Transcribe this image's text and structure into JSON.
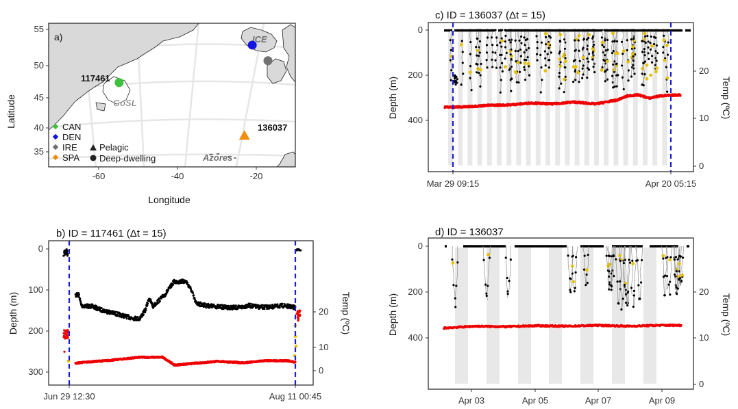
{
  "panel_a": {
    "label": "a)",
    "xlabel": "Longitude",
    "ylabel": "Latitude",
    "xticks": [
      "-60",
      "-40",
      "-20"
    ],
    "yticks": [
      "35",
      "40",
      "45",
      "50",
      "55"
    ],
    "places": {
      "gosl": "GoSL",
      "ice": "ICE",
      "azores": "Azores"
    },
    "tag_labels": {
      "t117461": "117461",
      "t136037": "136037"
    },
    "legend": {
      "countries": [
        {
          "label": "CAN",
          "color": "#3ec23e"
        },
        {
          "label": "DEN",
          "color": "#1515e0"
        },
        {
          "label": "IRE",
          "color": "#707070"
        },
        {
          "label": "SPA",
          "color": "#f28c0f"
        }
      ],
      "behaviours": [
        "Pelagic",
        "Deep-dwelling"
      ]
    },
    "colors": {
      "land": "#d9d9d9",
      "sea": "#ffffff",
      "graticule": "#e6e6e6"
    }
  },
  "panel_b": {
    "title": "b)  ID = 117461 (Δt = 15)",
    "ylabel_left": "Depth (m)",
    "ylabel_right": "Temp (ºC)",
    "left_ticks": [
      "0",
      "100",
      "200",
      "300"
    ],
    "right_ticks": [
      "0",
      "10",
      "20"
    ],
    "xticks": [
      "Jun 29 12:30",
      "Aug 11 00:45"
    ]
  },
  "panel_c": {
    "title": "c)  ID = 136037 (Δt = 15)",
    "ylabel_left": "Depth (m)",
    "ylabel_right": "Temp (ºC)",
    "left_ticks": [
      "0",
      "200",
      "400"
    ],
    "right_ticks": [
      "0",
      "10",
      "20"
    ],
    "xticks": [
      "Mar 29 09:15",
      "Apr 20 05:15"
    ]
  },
  "panel_d": {
    "title": "d)  ID = 136037",
    "ylabel_left": "Depth (m)",
    "ylabel_right": "Temp (ºC)",
    "left_ticks": [
      "0",
      "200",
      "400"
    ],
    "right_ticks": [
      "0",
      "10",
      "20"
    ],
    "xticks": [
      "Apr 03",
      "Apr 05",
      "Apr 07",
      "Apr 09"
    ]
  },
  "chart_data": [
    {
      "type": "scatter",
      "panel": "a",
      "xlabel": "Longitude",
      "ylabel": "Latitude",
      "xlim": [
        -72,
        -9
      ],
      "ylim": [
        33,
        56
      ],
      "points": [
        {
          "label": "117461",
          "lon": -54,
          "lat": 46.5,
          "country": "CAN",
          "shape": "circle"
        },
        {
          "label": "",
          "lon": -20,
          "lat": 52.5,
          "country": "DEN",
          "shape": "circle"
        },
        {
          "label": "",
          "lon": -16,
          "lat": 50,
          "country": "IRE",
          "shape": "circle"
        },
        {
          "label": "136037",
          "lon": -22,
          "lat": 38,
          "country": "SPA",
          "shape": "triangle"
        }
      ]
    },
    {
      "type": "scatter",
      "panel": "b",
      "ylabel": "Depth (m)",
      "y2label": "Temp (ºC)",
      "x_start": "Jun 29 12:30",
      "x_end": "Aug 11 00:45",
      "ylim": [
        0,
        355
      ],
      "y2lim": [
        -3,
        27
      ],
      "series": [
        {
          "name": "",
          "color": "#000000",
          "role": "depth"
        },
        {
          "name": "",
          "color": "#ee0000",
          "role": "temperature"
        },
        {
          "name": "",
          "color": "#e8c000",
          "role": "yellow points"
        }
      ],
      "depth_profile": [
        [
          0,
          5
        ],
        [
          0.3,
          10
        ],
        [
          1.6,
          112
        ],
        [
          2.5,
          112
        ],
        [
          3.1,
          138
        ],
        [
          6,
          140
        ],
        [
          8,
          148
        ],
        [
          12,
          158
        ],
        [
          16,
          168
        ],
        [
          18,
          170
        ],
        [
          19.5,
          150
        ],
        [
          20.5,
          120
        ],
        [
          21.5,
          140
        ],
        [
          22.5,
          130
        ],
        [
          24.5,
          112
        ],
        [
          26,
          92
        ],
        [
          26.8,
          80
        ],
        [
          30,
          79
        ],
        [
          31.3,
          100
        ],
        [
          32.5,
          132
        ],
        [
          35,
          138
        ],
        [
          40,
          142
        ],
        [
          43.5,
          143
        ],
        [
          46,
          138
        ],
        [
          49,
          142
        ],
        [
          52,
          141
        ],
        [
          55,
          138
        ],
        [
          58,
          143
        ]
      ],
      "temp_profile": [
        [
          0,
          13
        ],
        [
          0.6,
          11
        ],
        [
          1.6,
          2.5
        ],
        [
          3,
          2.8
        ],
        [
          10,
          3.5
        ],
        [
          18,
          4.6
        ],
        [
          24,
          4.6
        ],
        [
          25.5,
          3.3
        ],
        [
          27,
          1.9
        ],
        [
          31,
          2.4
        ],
        [
          38,
          3.2
        ],
        [
          45,
          2.7
        ],
        [
          50,
          3.4
        ],
        [
          56,
          3.4
        ],
        [
          58,
          2.9
        ]
      ]
    },
    {
      "type": "scatter",
      "panel": "c",
      "ylabel": "Depth (m)",
      "y2label": "Temp (ºC)",
      "x_start": "Mar 29 09:15",
      "x_end": "Apr 20 05:15",
      "ylim": [
        0,
        600
      ],
      "y2lim": [
        -1,
        29
      ],
      "depth_range": [
        0,
        300
      ],
      "temp_profile": [
        [
          0,
          12.4
        ],
        [
          2,
          12.5
        ],
        [
          4,
          12.8
        ],
        [
          6,
          12.9
        ],
        [
          8,
          13.3
        ],
        [
          10,
          13.1
        ],
        [
          12,
          13.5
        ],
        [
          14,
          13.1
        ],
        [
          16,
          13.9
        ],
        [
          17,
          14.8
        ],
        [
          18,
          15.0
        ],
        [
          19,
          14.3
        ],
        [
          20,
          14.8
        ],
        [
          21.9,
          15.0
        ]
      ]
    },
    {
      "type": "scatter",
      "panel": "d",
      "ylabel": "Depth (m)",
      "y2label": "Temp (ºC)",
      "x_ticks": [
        "Apr 03",
        "Apr 05",
        "Apr 07",
        "Apr 09"
      ],
      "ylim": [
        0,
        610
      ],
      "y2lim": [
        -1,
        29
      ],
      "depth_range": [
        0,
        300
      ],
      "temp_profile": [
        [
          0,
          12.2
        ],
        [
          1,
          12.6
        ],
        [
          2,
          12.5
        ],
        [
          3,
          12.7
        ],
        [
          4,
          12.6
        ],
        [
          5,
          12.8
        ],
        [
          6,
          12.6
        ],
        [
          7,
          12.8
        ],
        [
          7.7,
          12.8
        ]
      ]
    }
  ]
}
